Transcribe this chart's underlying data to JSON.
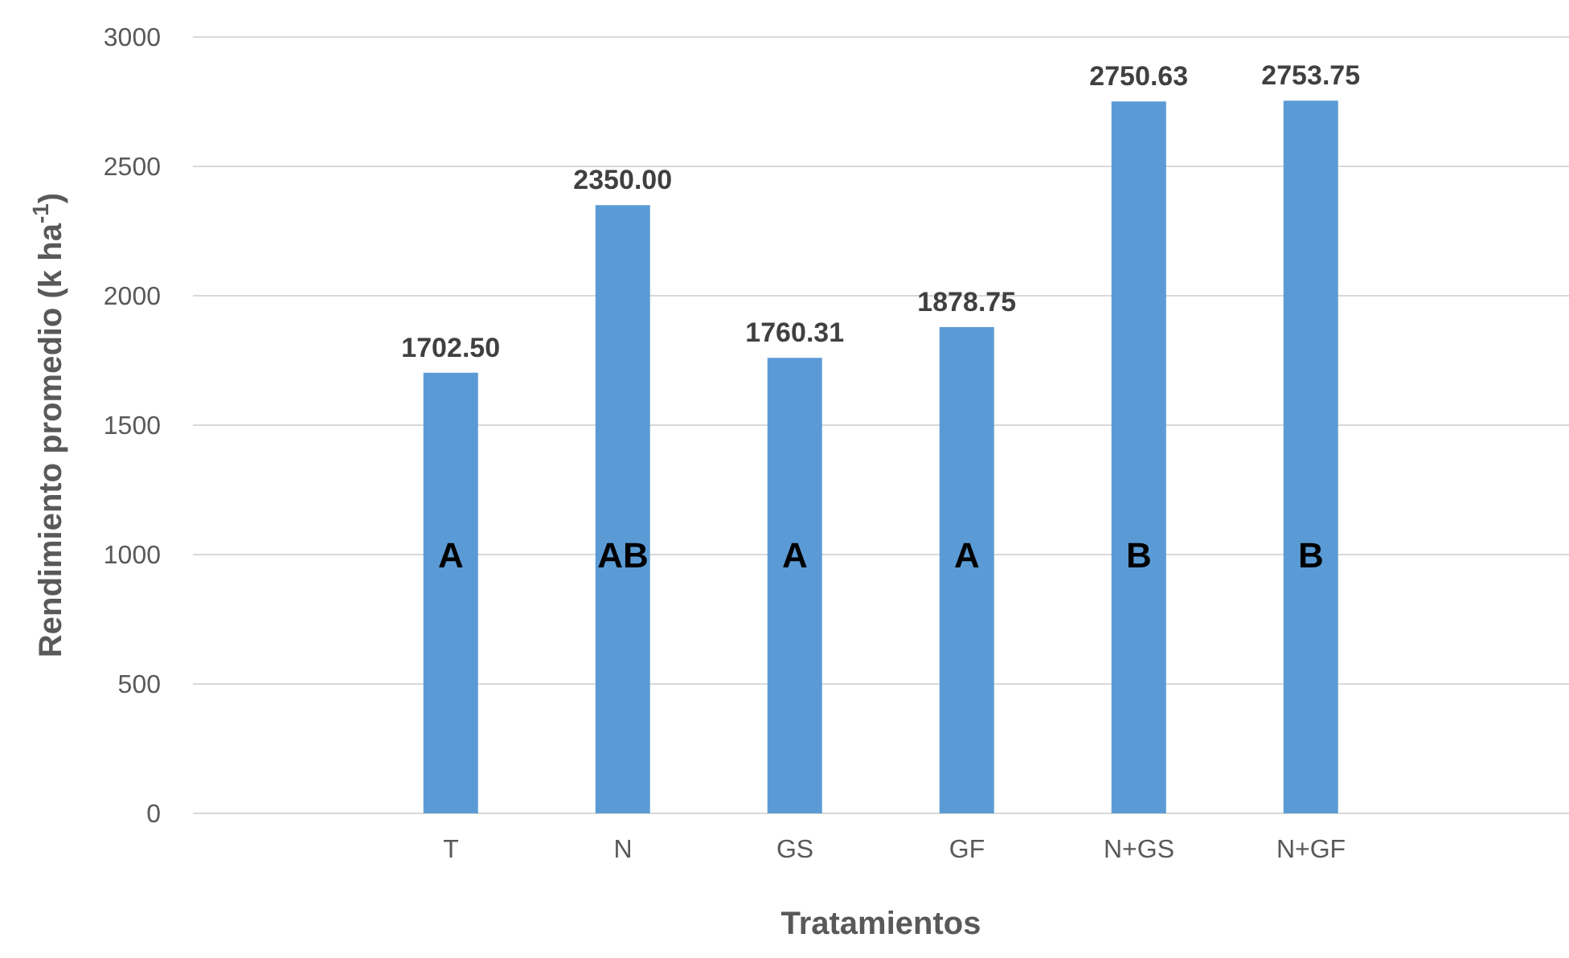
{
  "chart_data": {
    "type": "bar",
    "xlabel": "Tratamientos",
    "ylabel": "Rendimiento promedio (k ha$^{-1}$)",
    "categories": [
      null,
      "T",
      "N",
      "GS",
      "GF",
      "N+GS",
      "N+GF",
      null
    ],
    "values": [
      null,
      1702.5,
      2350,
      1760.31,
      1878.75,
      2750.63,
      2753.75,
      null
    ],
    "value_labels": [
      null,
      "1702.50",
      "2350.00",
      "1760.31",
      "1878.75",
      "2750.63",
      "2753.75",
      null
    ],
    "color": "#5b9bd5",
    "ylim": [
      0,
      3000
    ],
    "yticks": [
      0,
      500,
      1000,
      1500,
      2000,
      2500,
      3000
    ],
    "grid": "y",
    "legend": false,
    "annotations": [
      "A",
      "AB",
      "A",
      "A",
      "B",
      "B"
    ]
  }
}
